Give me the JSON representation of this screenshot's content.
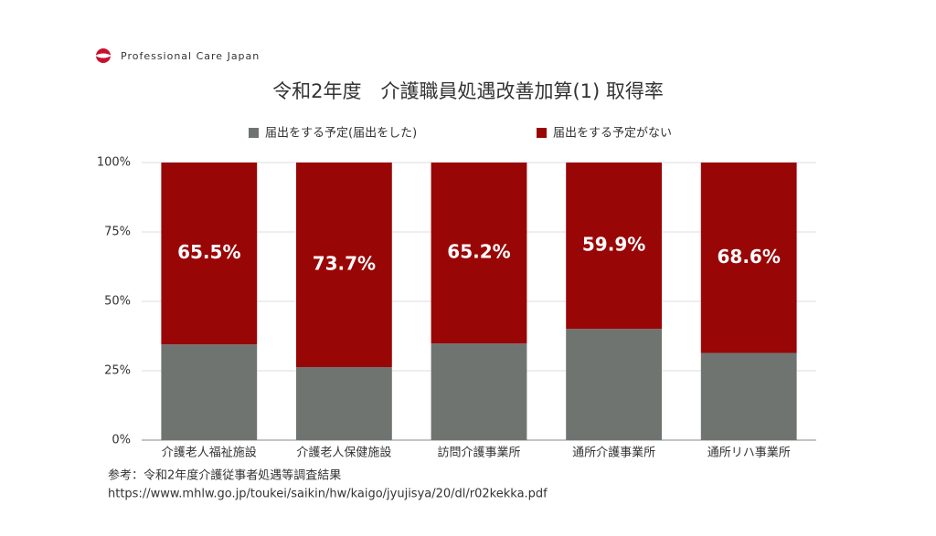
{
  "brand": "Professional Care Japan",
  "source": [
    "参考：令和2年度介護従事者処遇等調査結果",
    "https://www.mhlw.go.jp/toukei/saikin/hw/kaigo/jyujisya/20/dl/r02kekka.pdf"
  ],
  "chart_data": {
    "type": "stacked_bar",
    "title": "令和2年度　介護職員処遇改善加算(1) 取得率",
    "categories": [
      "介護老人福祉施設",
      "介護老人保健施設",
      "訪問介護事業所",
      "通所介護事業所",
      "通所リハ事業所"
    ],
    "series": [
      {
        "name": "届出をする予定(届出をした)",
        "color": "#6f7471",
        "values": [
          34.5,
          26.3,
          34.8,
          40.1,
          31.4
        ]
      },
      {
        "name": "届出をする予定がない",
        "color": "#990606",
        "values": [
          65.5,
          73.7,
          65.2,
          59.9,
          68.6
        ],
        "value_labels": [
          "65.5%",
          "73.7%",
          "65.2%",
          "59.9%",
          "68.6%"
        ]
      }
    ],
    "ylim": [
      0,
      100
    ],
    "yticks": [
      {
        "value": 0,
        "label": "0%"
      },
      {
        "value": 25,
        "label": "25%"
      },
      {
        "value": 50,
        "label": "50%"
      },
      {
        "value": 75,
        "label": "75%"
      },
      {
        "value": 100,
        "label": "100%"
      }
    ],
    "grid": true,
    "legend": "top"
  }
}
